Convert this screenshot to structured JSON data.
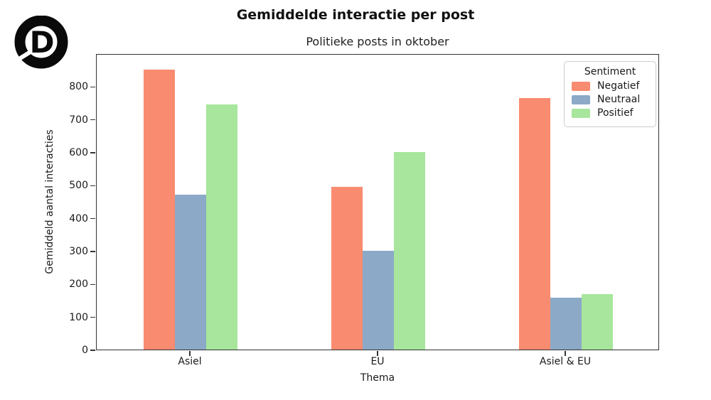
{
  "logo": {
    "name": "d-logo",
    "letter": "D"
  },
  "header": {
    "title": "Gemiddelde interactie per post",
    "subtitle": "Politieke posts in oktober"
  },
  "chart_data": {
    "type": "bar",
    "title": "Gemiddelde interactie per post",
    "subtitle": "Politieke posts in oktober",
    "xlabel": "Thema",
    "ylabel": "Gemiddeld aantal interacties",
    "categories": [
      "Asiel",
      "EU",
      "Asiel & EU"
    ],
    "series": [
      {
        "name": "Negatief",
        "color": "#F98B70",
        "values": [
          850,
          495,
          765
        ]
      },
      {
        "name": "Neutraal",
        "color": "#8CA9C7",
        "values": [
          470,
          300,
          158
        ]
      },
      {
        "name": "Positief",
        "color": "#A7E69C",
        "values": [
          745,
          600,
          168
        ]
      }
    ],
    "ylim": [
      0,
      900
    ],
    "yticks": [
      0,
      100,
      200,
      300,
      400,
      500,
      600,
      700,
      800
    ],
    "grid": false,
    "legend": {
      "title": "Sentiment",
      "position": "upper right"
    }
  }
}
